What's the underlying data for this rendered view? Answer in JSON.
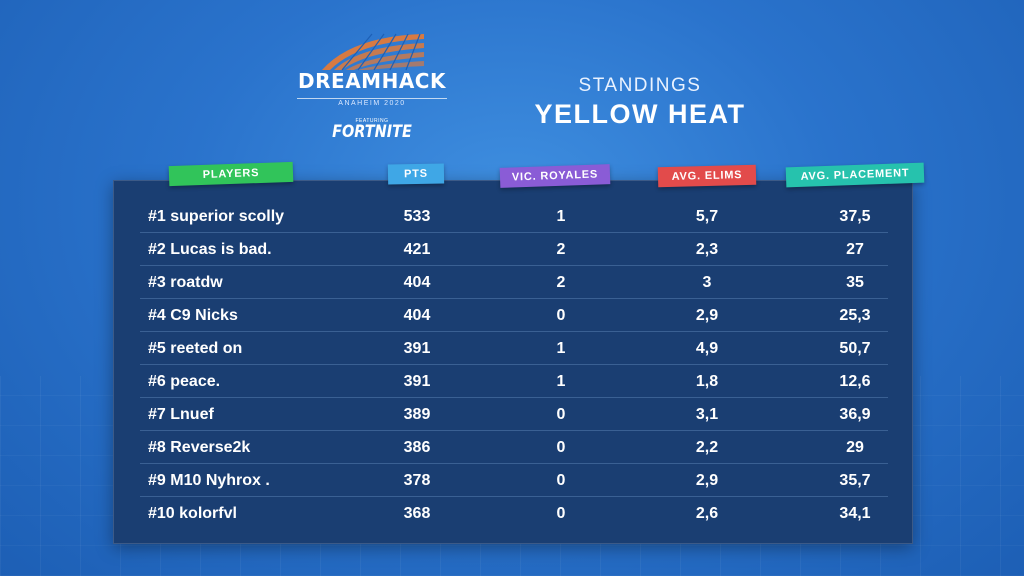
{
  "logo": {
    "wordmark": "DREAMHACK",
    "location": "ANAHEIM 2020",
    "featuring": "FEATURING",
    "game": "FORTNITE"
  },
  "heading": {
    "subtitle": "STANDINGS",
    "title": "YELLOW HEAT"
  },
  "columns": {
    "players": "PLAYERS",
    "pts": "PTS",
    "vic_royales": "VIC. ROYALES",
    "avg_elims": "AVG. ELIMS",
    "avg_placement": "AVG. PLACEMENT"
  },
  "colors": {
    "players_tag": "#31c45a",
    "pts_tag": "#3fa7e6",
    "vic_tag": "#8a5cd6",
    "elims_tag": "#e24b4b",
    "placement_tag": "#26c2ad",
    "panel": "#1a3e72"
  },
  "rows": [
    {
      "player": "#1 superior scolly",
      "pts": "533",
      "vic": "1",
      "elims": "5,7",
      "placement": "37,5"
    },
    {
      "player": "#2 Lucas is bad.",
      "pts": "421",
      "vic": "2",
      "elims": "2,3",
      "placement": "27"
    },
    {
      "player": "#3 roatdw",
      "pts": "404",
      "vic": "2",
      "elims": "3",
      "placement": "35"
    },
    {
      "player": "#4 C9 Nicks",
      "pts": "404",
      "vic": "0",
      "elims": "2,9",
      "placement": "25,3"
    },
    {
      "player": "#5 reeted on",
      "pts": "391",
      "vic": "1",
      "elims": "4,9",
      "placement": "50,7"
    },
    {
      "player": "#6 peace.",
      "pts": "391",
      "vic": "1",
      "elims": "1,8",
      "placement": "12,6"
    },
    {
      "player": "#7 Lnuef",
      "pts": "389",
      "vic": "0",
      "elims": "3,1",
      "placement": "36,9"
    },
    {
      "player": "#8 Reverse2k",
      "pts": "386",
      "vic": "0",
      "elims": "2,2",
      "placement": "29"
    },
    {
      "player": "#9 M10 Nyhrox .",
      "pts": "378",
      "vic": "0",
      "elims": "2,9",
      "placement": "35,7"
    },
    {
      "player": "#10 kolorfvl",
      "pts": "368",
      "vic": "0",
      "elims": "2,6",
      "placement": "34,1"
    }
  ]
}
